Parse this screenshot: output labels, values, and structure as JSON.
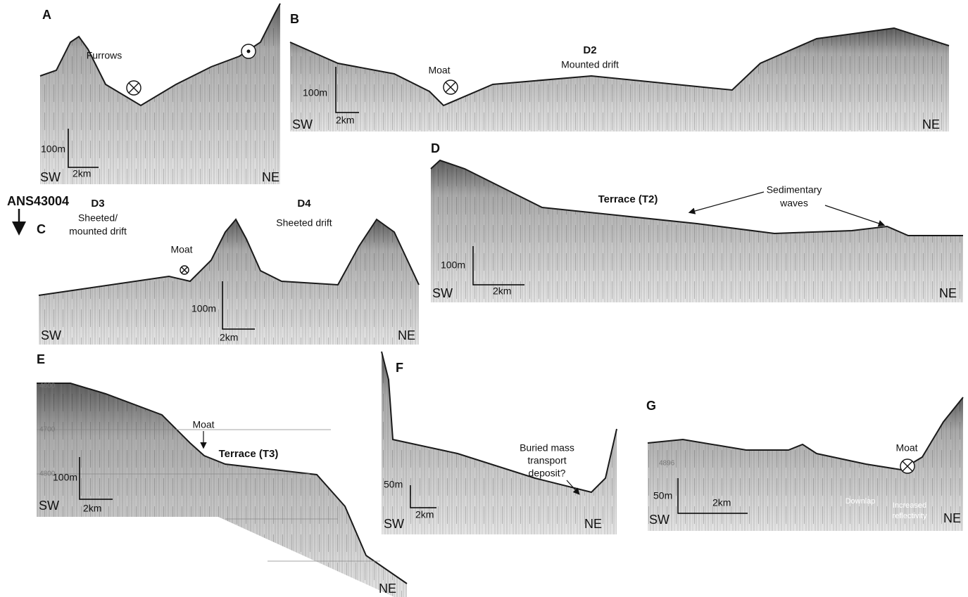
{
  "panels": [
    {
      "label": "A",
      "annotations": [
        "Furrows"
      ],
      "vertical_scale": "100m",
      "horizontal_scale": "2km",
      "left_end": "SW",
      "right_end": "NE"
    },
    {
      "label": "B",
      "annotations": [
        "D2",
        "Mounted drift",
        "Moat"
      ],
      "vertical_scale": "100m",
      "horizontal_scale": "2km",
      "left_end": "SW",
      "right_end": "NE"
    },
    {
      "label": "C",
      "annotations": [
        "ANS43004",
        "D3",
        "Sheeted/",
        "mounted drift",
        "Moat",
        "D4",
        "Sheeted drift"
      ],
      "vertical_scale": "100m",
      "horizontal_scale": "2km",
      "left_end": "SW",
      "right_end": "NE"
    },
    {
      "label": "D",
      "annotations": [
        "Terrace (T2)",
        "Sedimentary",
        "waves"
      ],
      "vertical_scale": "100m",
      "horizontal_scale": "2km",
      "left_end": "SW",
      "right_end": "NE"
    },
    {
      "label": "E",
      "annotations": [
        "Moat",
        "Terrace (T3)"
      ],
      "depth_labels": [
        "4600",
        "4700",
        "4800"
      ],
      "vertical_scale": "100m",
      "horizontal_scale": "2km",
      "left_end": "SW",
      "right_end": "NE"
    },
    {
      "label": "F",
      "annotations": [
        "Buried mass",
        "transport",
        "deposit?"
      ],
      "vertical_scale": "50m",
      "horizontal_scale": "2km",
      "left_end": "SW",
      "right_end": "NE"
    },
    {
      "label": "G",
      "annotations": [
        "Moat",
        "Downlap",
        "Increased",
        "reflectivity"
      ],
      "depth_labels": [
        "4896"
      ],
      "vertical_scale": "50m",
      "horizontal_scale": "2km",
      "left_end": "SW",
      "right_end": "NE"
    }
  ]
}
